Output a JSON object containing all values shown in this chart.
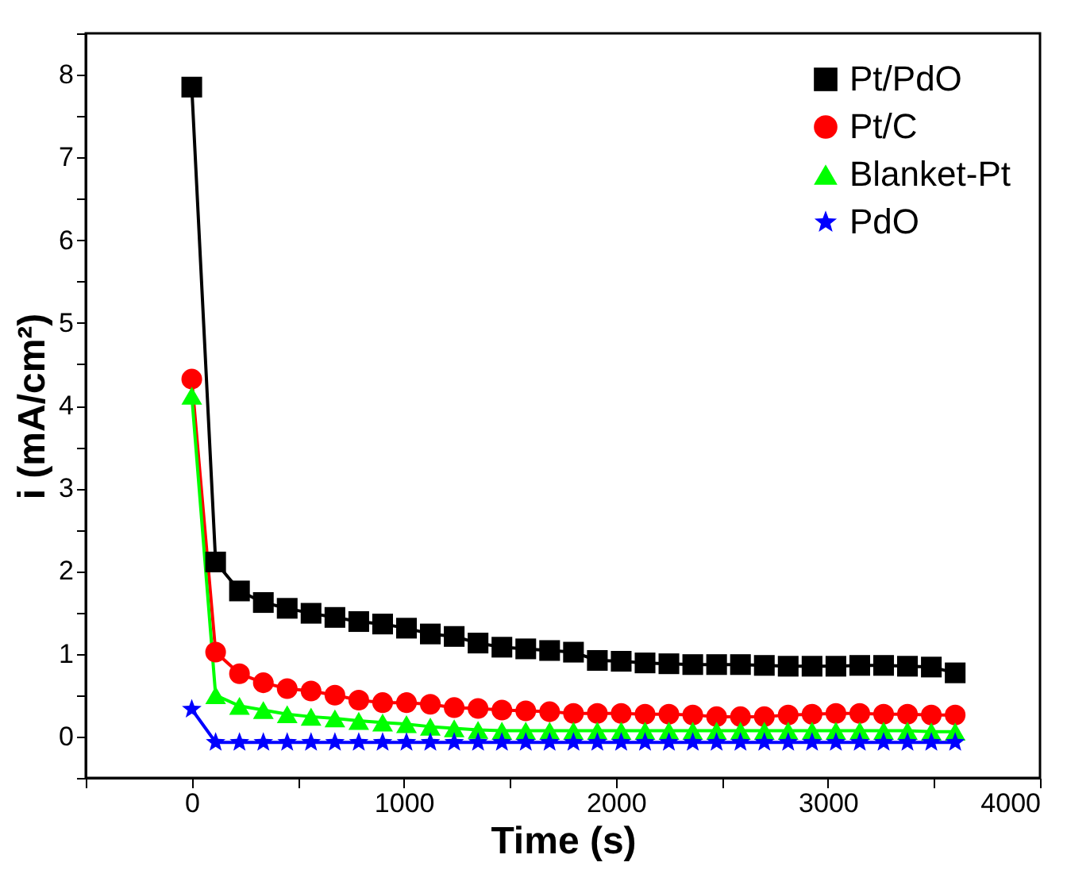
{
  "chart_data": {
    "type": "line",
    "xlabel": "Time (s)",
    "ylabel": "i (mA/cm²)",
    "x": [
      0,
      112.5,
      225,
      337.5,
      450,
      562.5,
      675,
      787.5,
      900,
      1012.5,
      1125,
      1237.5,
      1350,
      1462.5,
      1575,
      1687.5,
      1800,
      1912.5,
      2025,
      2137.5,
      2250,
      2362.5,
      2475,
      2587.5,
      2700,
      2812.5,
      2925,
      3037.5,
      3150,
      3262.5,
      3375,
      3487.5,
      3600
    ],
    "series": [
      {
        "name": "Pt/PdO",
        "color": "#000000",
        "marker": "square",
        "values": [
          7.85,
          2.11,
          1.76,
          1.62,
          1.55,
          1.49,
          1.44,
          1.39,
          1.36,
          1.31,
          1.24,
          1.21,
          1.13,
          1.08,
          1.06,
          1.04,
          1.02,
          0.92,
          0.91,
          0.89,
          0.88,
          0.87,
          0.87,
          0.87,
          0.86,
          0.85,
          0.85,
          0.85,
          0.86,
          0.86,
          0.85,
          0.84,
          0.77
        ]
      },
      {
        "name": "Pt/C",
        "color": "#ff0000",
        "marker": "circle",
        "values": [
          4.32,
          1.02,
          0.76,
          0.65,
          0.58,
          0.55,
          0.5,
          0.44,
          0.41,
          0.41,
          0.39,
          0.35,
          0.34,
          0.32,
          0.31,
          0.3,
          0.28,
          0.28,
          0.28,
          0.27,
          0.27,
          0.26,
          0.24,
          0.24,
          0.24,
          0.26,
          0.27,
          0.28,
          0.28,
          0.27,
          0.27,
          0.26,
          0.26
        ]
      },
      {
        "name": "Blanket-Pt",
        "color": "#00ff00",
        "marker": "triangle",
        "values": [
          4.12,
          0.5,
          0.37,
          0.32,
          0.27,
          0.24,
          0.22,
          0.19,
          0.17,
          0.15,
          0.12,
          0.1,
          0.08,
          0.07,
          0.07,
          0.07,
          0.07,
          0.07,
          0.07,
          0.07,
          0.07,
          0.07,
          0.07,
          0.07,
          0.07,
          0.07,
          0.07,
          0.07,
          0.07,
          0.07,
          0.07,
          0.06,
          0.06
        ]
      },
      {
        "name": "PdO",
        "color": "#0000ff",
        "marker": "star",
        "values": [
          0.33,
          -0.07,
          -0.07,
          -0.07,
          -0.07,
          -0.07,
          -0.07,
          -0.07,
          -0.07,
          -0.07,
          -0.07,
          -0.07,
          -0.07,
          -0.07,
          -0.07,
          -0.07,
          -0.07,
          -0.07,
          -0.07,
          -0.07,
          -0.07,
          -0.07,
          -0.07,
          -0.07,
          -0.07,
          -0.07,
          -0.07,
          -0.07,
          -0.07,
          -0.07,
          -0.07,
          -0.07,
          -0.07
        ]
      }
    ],
    "xlim": [
      -500,
      4000
    ],
    "xticks": [
      {
        "value": -500,
        "label": null
      },
      0,
      {
        "value": 500,
        "label": null
      },
      1000,
      {
        "value": 1500,
        "label": null
      },
      2000,
      {
        "value": 2500,
        "label": null
      },
      3000,
      {
        "value": 3500,
        "label": null
      },
      4000
    ],
    "ylim": [
      -0.5,
      8.5
    ],
    "yticks": [
      {
        "value": -0.5,
        "label": null
      },
      0,
      {
        "value": 0.5,
        "label": null
      },
      1,
      {
        "value": 1.5,
        "label": null
      },
      2,
      {
        "value": 2.5,
        "label": null
      },
      3,
      {
        "value": 3.5,
        "label": null
      },
      4,
      {
        "value": 4.5,
        "label": null
      },
      5,
      {
        "value": 5.5,
        "label": null
      },
      6,
      {
        "value": 6.5,
        "label": null
      },
      7,
      {
        "value": 7.5,
        "label": null
      },
      8,
      {
        "value": 8.5,
        "label": null
      }
    ],
    "legend": "top right",
    "grid": false,
    "line_style": "solid"
  }
}
